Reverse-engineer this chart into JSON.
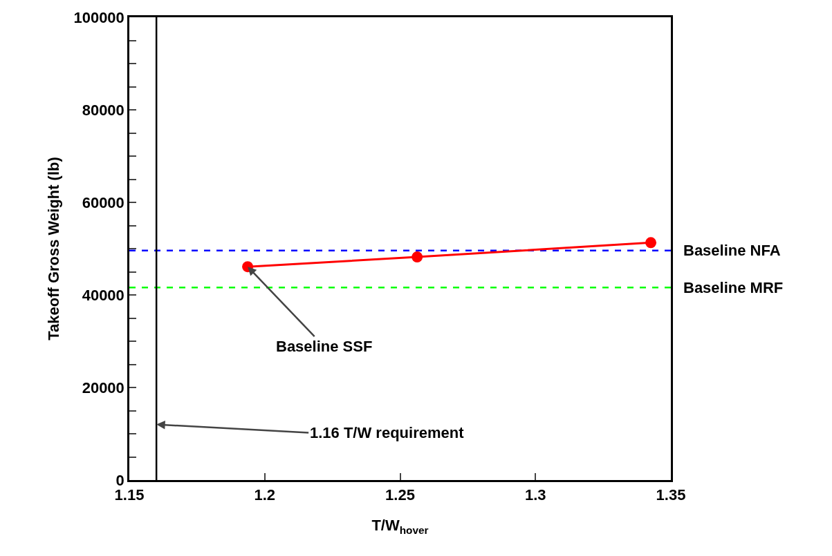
{
  "chart_data": {
    "type": "line",
    "xlabel": "T/W$_{hover}$",
    "ylabel": "Takeoff Gross Weight (lb)",
    "x": [
      1.1937,
      1.2563,
      1.3426
    ],
    "series": [
      {
        "color": "#ff0000",
        "values": [
          46100,
          48200,
          51300
        ]
      }
    ],
    "marker": "circle",
    "line_style": "solid",
    "grid": false,
    "xlim": [
      1.15,
      1.35
    ],
    "xticks": [
      1.15,
      1.2,
      1.25,
      1.3,
      1.35
    ],
    "ylim": [
      0,
      100000
    ],
    "yticks": [
      0,
      {
        "value": 5000,
        "label": null
      },
      {
        "value": 10000,
        "label": null
      },
      {
        "value": 15000,
        "label": null
      },
      20000,
      {
        "value": 25000,
        "label": null
      },
      {
        "value": 30000,
        "label": null
      },
      {
        "value": 35000,
        "label": null
      },
      40000,
      {
        "value": 45000,
        "label": null
      },
      {
        "value": 50000,
        "label": null
      },
      {
        "value": 55000,
        "label": null
      },
      60000,
      {
        "value": 65000,
        "label": null
      },
      {
        "value": 70000,
        "label": null
      },
      {
        "value": 75000,
        "label": null
      },
      80000,
      {
        "value": 85000,
        "label": null
      },
      {
        "value": 90000,
        "label": null
      },
      {
        "value": 95000,
        "label": null
      },
      100000
    ],
    "ref_lines": [
      {
        "axis": "y",
        "value": 49600,
        "label": "Baseline NFA",
        "color": "#0000ff",
        "line_style": "dashed"
      },
      {
        "axis": "y",
        "value": 41600,
        "label": "Baseline MRF",
        "color": "#00ff00",
        "line_style": "dashed"
      },
      {
        "axis": "x",
        "value": 1.16,
        "label": "1.16 T/W requirement",
        "color": "#000000",
        "line_style": "solid"
      }
    ],
    "annotations": [
      {
        "text": "Baseline SSF",
        "x": 1.1937,
        "y": 46100
      }
    ]
  }
}
